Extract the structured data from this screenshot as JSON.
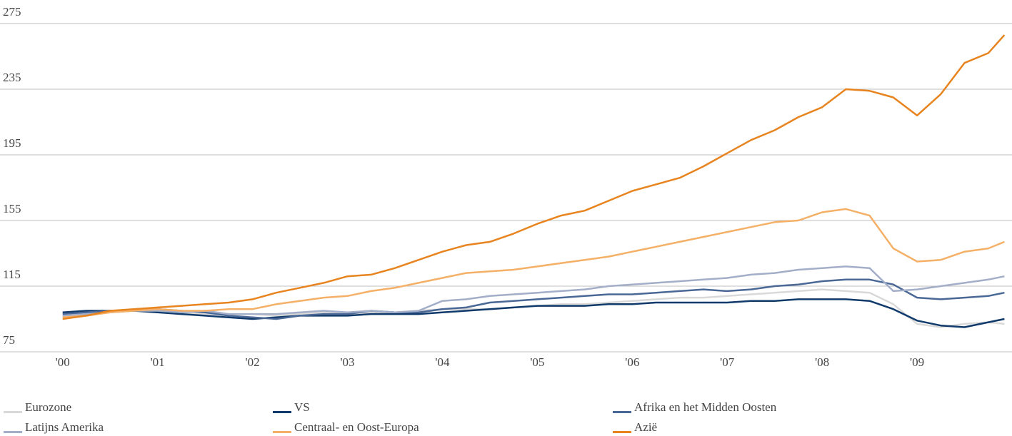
{
  "chart_data": {
    "type": "line",
    "x": [
      2000,
      2000.25,
      2000.5,
      2000.75,
      2001,
      2001.25,
      2001.5,
      2001.75,
      2002,
      2002.25,
      2002.5,
      2002.75,
      2003,
      2003.25,
      2003.5,
      2003.75,
      2004,
      2004.25,
      2004.5,
      2004.75,
      2005,
      2005.25,
      2005.5,
      2005.75,
      2006,
      2006.25,
      2006.5,
      2006.75,
      2007,
      2007.25,
      2007.5,
      2007.75,
      2008,
      2008.25,
      2008.5,
      2008.75,
      2009,
      2009.25,
      2009.5,
      2009.75,
      2009.92
    ],
    "xlim": [
      1999.34,
      2010
    ],
    "xticks": [
      {
        "value": 2000,
        "label": "'00"
      },
      {
        "value": 2001,
        "label": "'01"
      },
      {
        "value": 2002,
        "label": "'02"
      },
      {
        "value": 2003,
        "label": "'03"
      },
      {
        "value": 2004,
        "label": "'04"
      },
      {
        "value": 2005,
        "label": "'05"
      },
      {
        "value": 2006,
        "label": "'06"
      },
      {
        "value": 2007,
        "label": "'07"
      },
      {
        "value": 2008,
        "label": "'08"
      },
      {
        "value": 2009,
        "label": "'09"
      }
    ],
    "ylim": [
      75,
      275
    ],
    "yticks": [
      75,
      115,
      155,
      195,
      235,
      275
    ],
    "grid": true,
    "legend": "bottom",
    "series": [
      {
        "name": "Eurozone",
        "color": "#d9d9d9",
        "values": [
          97,
          98,
          99,
          100,
          100,
          99,
          98,
          98,
          98,
          97,
          98,
          99,
          98,
          99,
          99,
          100,
          101,
          101,
          101,
          102,
          103,
          104,
          104,
          105,
          106,
          107,
          108,
          108,
          109,
          110,
          111,
          112,
          113,
          112,
          111,
          104,
          92,
          90,
          92,
          93,
          92
        ]
      },
      {
        "name": "VS",
        "color": "#0f3a6b",
        "values": [
          99,
          100,
          100,
          100,
          99,
          98,
          97,
          96,
          95,
          96,
          97,
          97,
          97,
          98,
          98,
          98,
          99,
          100,
          101,
          102,
          103,
          103,
          103,
          104,
          104,
          105,
          105,
          105,
          105,
          106,
          106,
          107,
          107,
          107,
          106,
          101,
          94,
          91,
          90,
          93,
          95
        ]
      },
      {
        "name": "Afrika en het Midden Oosten",
        "color": "#4a6896",
        "values": [
          98,
          99,
          100,
          100,
          101,
          100,
          99,
          97,
          96,
          95,
          97,
          98,
          98,
          100,
          99,
          99,
          101,
          102,
          105,
          106,
          107,
          108,
          109,
          110,
          110,
          111,
          112,
          113,
          112,
          113,
          115,
          116,
          118,
          119,
          119,
          116,
          108,
          107,
          108,
          109,
          111
        ]
      },
      {
        "name": "Latijns Amerika",
        "color": "#a3aec8",
        "values": [
          97,
          98,
          99,
          100,
          100,
          99,
          100,
          98,
          98,
          98,
          99,
          100,
          99,
          100,
          99,
          100,
          106,
          107,
          109,
          110,
          111,
          112,
          113,
          115,
          116,
          117,
          118,
          119,
          120,
          122,
          123,
          125,
          126,
          127,
          126,
          112,
          113,
          115,
          117,
          119,
          121
        ]
      },
      {
        "name": "Centraal- en Oost-Europa",
        "color": "#f5b068",
        "values": [
          96,
          97,
          99,
          100,
          101,
          100,
          100,
          101,
          101,
          104,
          106,
          108,
          109,
          112,
          114,
          117,
          120,
          123,
          124,
          125,
          127,
          129,
          131,
          133,
          136,
          139,
          142,
          145,
          148,
          151,
          154,
          155,
          160,
          162,
          158,
          138,
          130,
          131,
          136,
          138,
          142
        ]
      },
      {
        "name": "Azië",
        "color": "#e8841f",
        "values": [
          95,
          97,
          100,
          101,
          102,
          103,
          104,
          105,
          107,
          111,
          114,
          117,
          121,
          122,
          126,
          131,
          136,
          140,
          142,
          147,
          153,
          158,
          161,
          167,
          173,
          177,
          181,
          188,
          196,
          204,
          210,
          218,
          224,
          235,
          234,
          230,
          219,
          232,
          251,
          257,
          268
        ]
      }
    ]
  }
}
